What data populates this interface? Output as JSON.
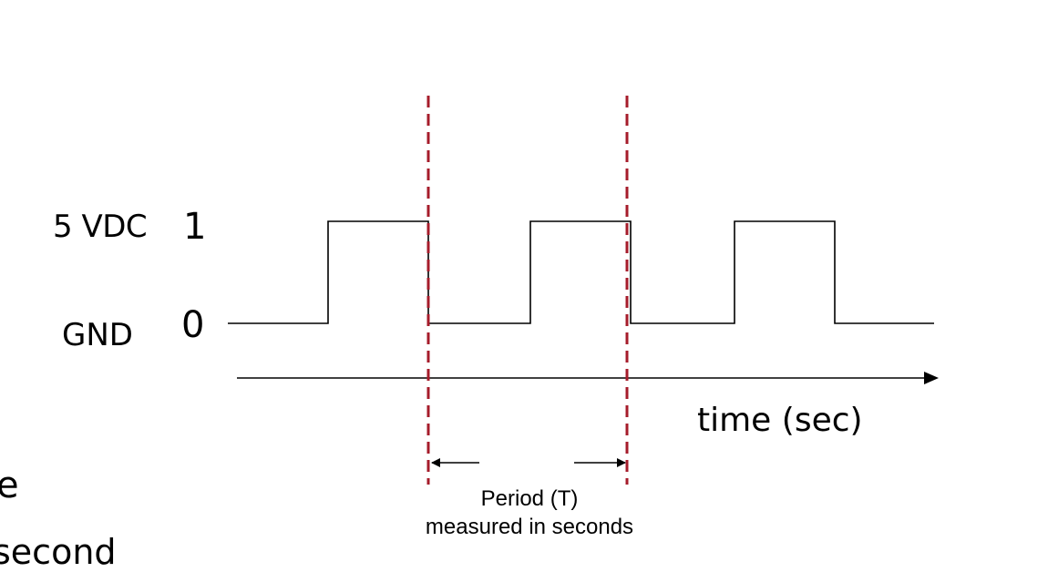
{
  "levels": {
    "high_voltage": "5 VDC",
    "high_logic": "1",
    "low_voltage": "GND",
    "low_logic": "0"
  },
  "time_axis": {
    "label": "time (sec)"
  },
  "period": {
    "line1": "Period (T)",
    "line2": "measured in seconds"
  },
  "cropped_text": {
    "fragment_top": "e",
    "fragment_bottom": "second"
  },
  "colors": {
    "signal": "#000000",
    "period_marker": "#a61c2b"
  }
}
